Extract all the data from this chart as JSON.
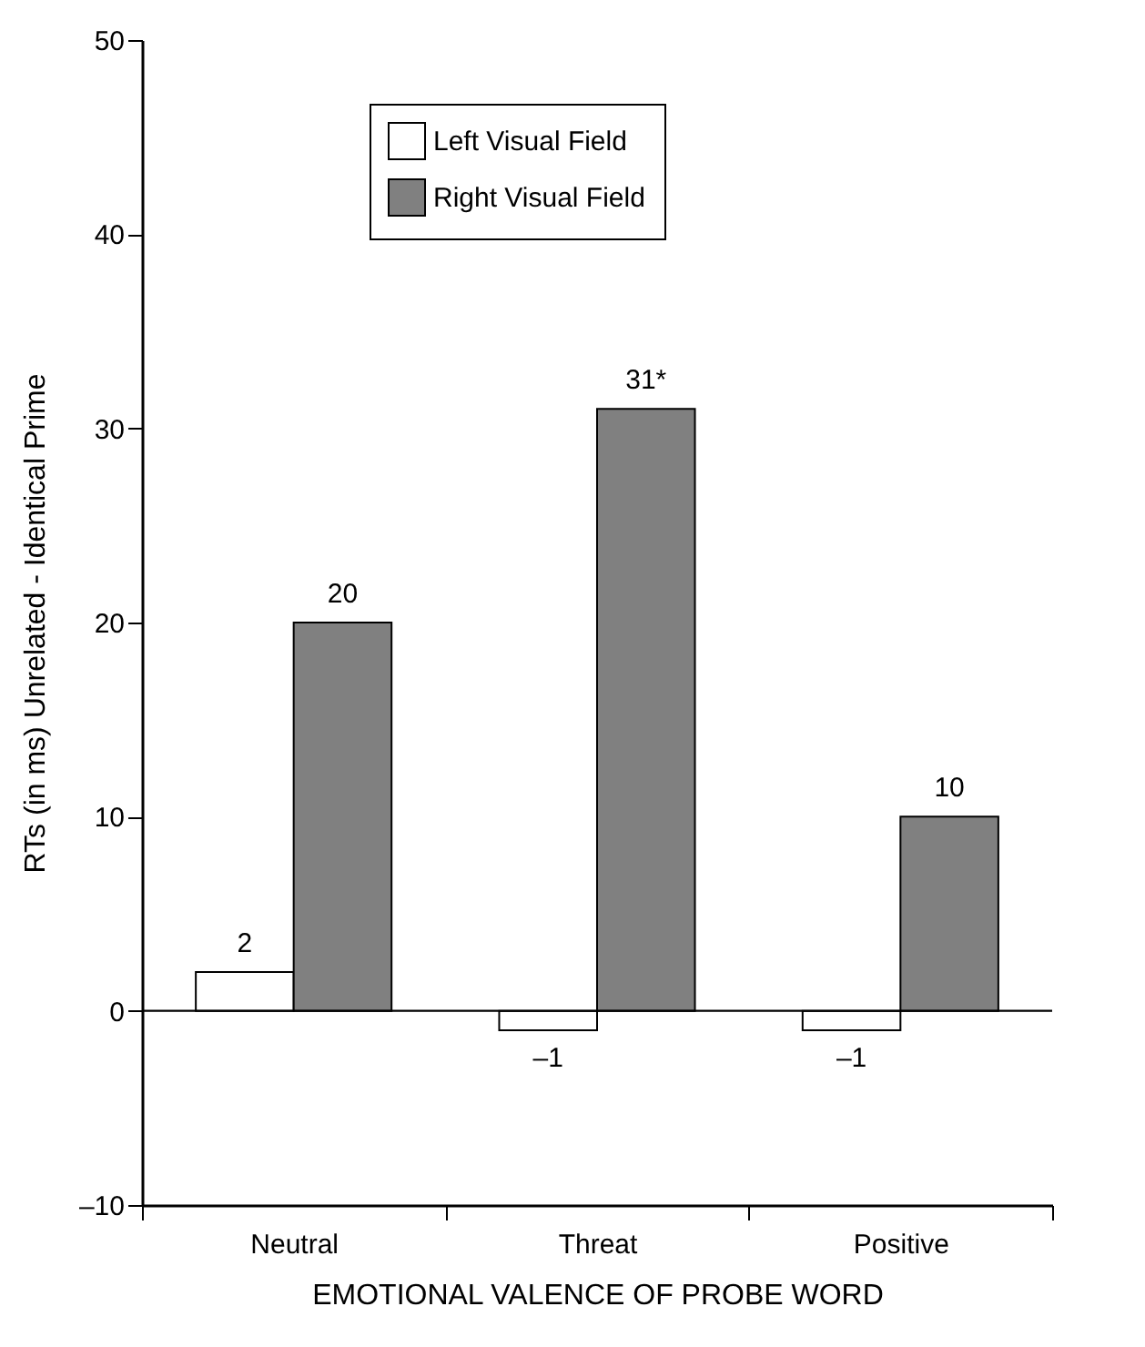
{
  "chart_data": {
    "type": "bar",
    "xlabel": "EMOTIONAL VALENCE OF PROBE WORD",
    "ylabel": "RTs (in ms) Unrelated - Identical Prime",
    "categories": [
      "Neutral",
      "Threat",
      "Positive"
    ],
    "series": [
      {
        "name": "Left Visual Field",
        "color": "#ffffff",
        "values": [
          2,
          -1,
          -1
        ],
        "value_labels": [
          "2",
          "–1",
          "–1"
        ]
      },
      {
        "name": "Right Visual Field",
        "color": "#808080",
        "values": [
          20,
          31,
          10
        ],
        "value_labels": [
          "20",
          "31*",
          "10"
        ]
      }
    ],
    "ylim": [
      -10,
      50
    ],
    "yticks": [
      {
        "value": -10,
        "label": "–10"
      },
      0,
      10,
      20,
      30,
      40,
      50
    ],
    "ref_lines": [
      {
        "axis": "y",
        "value": 0
      }
    ],
    "grid": false,
    "legend": "top"
  }
}
